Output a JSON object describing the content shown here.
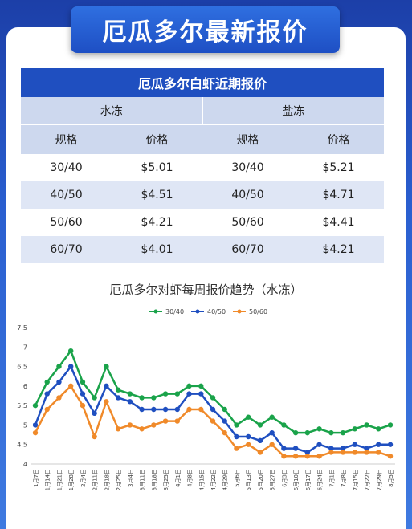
{
  "banner_title": "厄瓜多尔最新报价",
  "table": {
    "title": "厄瓜多尔白虾近期报价",
    "groups": [
      "水冻",
      "盐冻"
    ],
    "headers": [
      "规格",
      "价格",
      "规格",
      "价格"
    ],
    "rows": [
      [
        "30/40",
        "$5.01",
        "30/40",
        "$5.21"
      ],
      [
        "40/50",
        "$4.51",
        "40/50",
        "$4.71"
      ],
      [
        "50/60",
        "$4.21",
        "50/60",
        "$4.41"
      ],
      [
        "60/70",
        "$4.01",
        "60/70",
        "$4.21"
      ]
    ]
  },
  "chart_data": {
    "type": "line",
    "title": "厄瓜多尔对虾每周报价趋势（水冻）",
    "legend_position": "top-center",
    "grid": false,
    "ylim": [
      4,
      7.5
    ],
    "yticks": [
      "4",
      "4.5",
      "5",
      "5.5",
      "6",
      "6.5",
      "7",
      "7.5"
    ],
    "categories": [
      "1月7日",
      "1月14日",
      "1月21日",
      "1月28日",
      "2月4日",
      "2月11日",
      "2月18日",
      "2月25日",
      "3月4日",
      "3月11日",
      "3月18日",
      "3月25日",
      "4月1日",
      "4月8日",
      "4月15日",
      "4月22日",
      "4月29日",
      "5月6日",
      "5月13日",
      "5月20日",
      "5月27日",
      "6月3日",
      "6月10日",
      "6月17日",
      "6月24日",
      "7月1日",
      "7月8日",
      "7月15日",
      "7月22日",
      "7月29日",
      "8月5日"
    ],
    "series": [
      {
        "name": "30/40",
        "color": "#1aa34a",
        "values": [
          5.5,
          6.1,
          6.5,
          6.9,
          6.1,
          5.7,
          6.5,
          5.9,
          5.8,
          5.7,
          5.7,
          5.8,
          5.8,
          6.0,
          6.0,
          5.7,
          5.4,
          5.0,
          5.2,
          5.0,
          5.2,
          5.0,
          4.8,
          4.8,
          4.9,
          4.8,
          4.8,
          4.9,
          5.0,
          4.9,
          5.0
        ]
      },
      {
        "name": "40/50",
        "color": "#1f4fc0",
        "values": [
          5.0,
          5.8,
          6.1,
          6.5,
          5.8,
          5.3,
          6.0,
          5.7,
          5.6,
          5.4,
          5.4,
          5.4,
          5.4,
          5.8,
          5.8,
          5.4,
          5.1,
          4.7,
          4.7,
          4.6,
          4.8,
          4.4,
          4.4,
          4.3,
          4.5,
          4.4,
          4.4,
          4.5,
          4.4,
          4.5,
          4.5
        ]
      },
      {
        "name": "50/60",
        "color": "#f08a2a",
        "values": [
          4.8,
          5.4,
          5.7,
          6.0,
          5.5,
          4.7,
          5.6,
          4.9,
          5.0,
          4.9,
          5.0,
          5.1,
          5.1,
          5.4,
          5.4,
          5.1,
          4.8,
          4.4,
          4.5,
          4.3,
          4.5,
          4.2,
          4.2,
          4.2,
          4.2,
          4.3,
          4.3,
          4.3,
          4.3,
          4.3,
          4.2
        ]
      }
    ]
  }
}
